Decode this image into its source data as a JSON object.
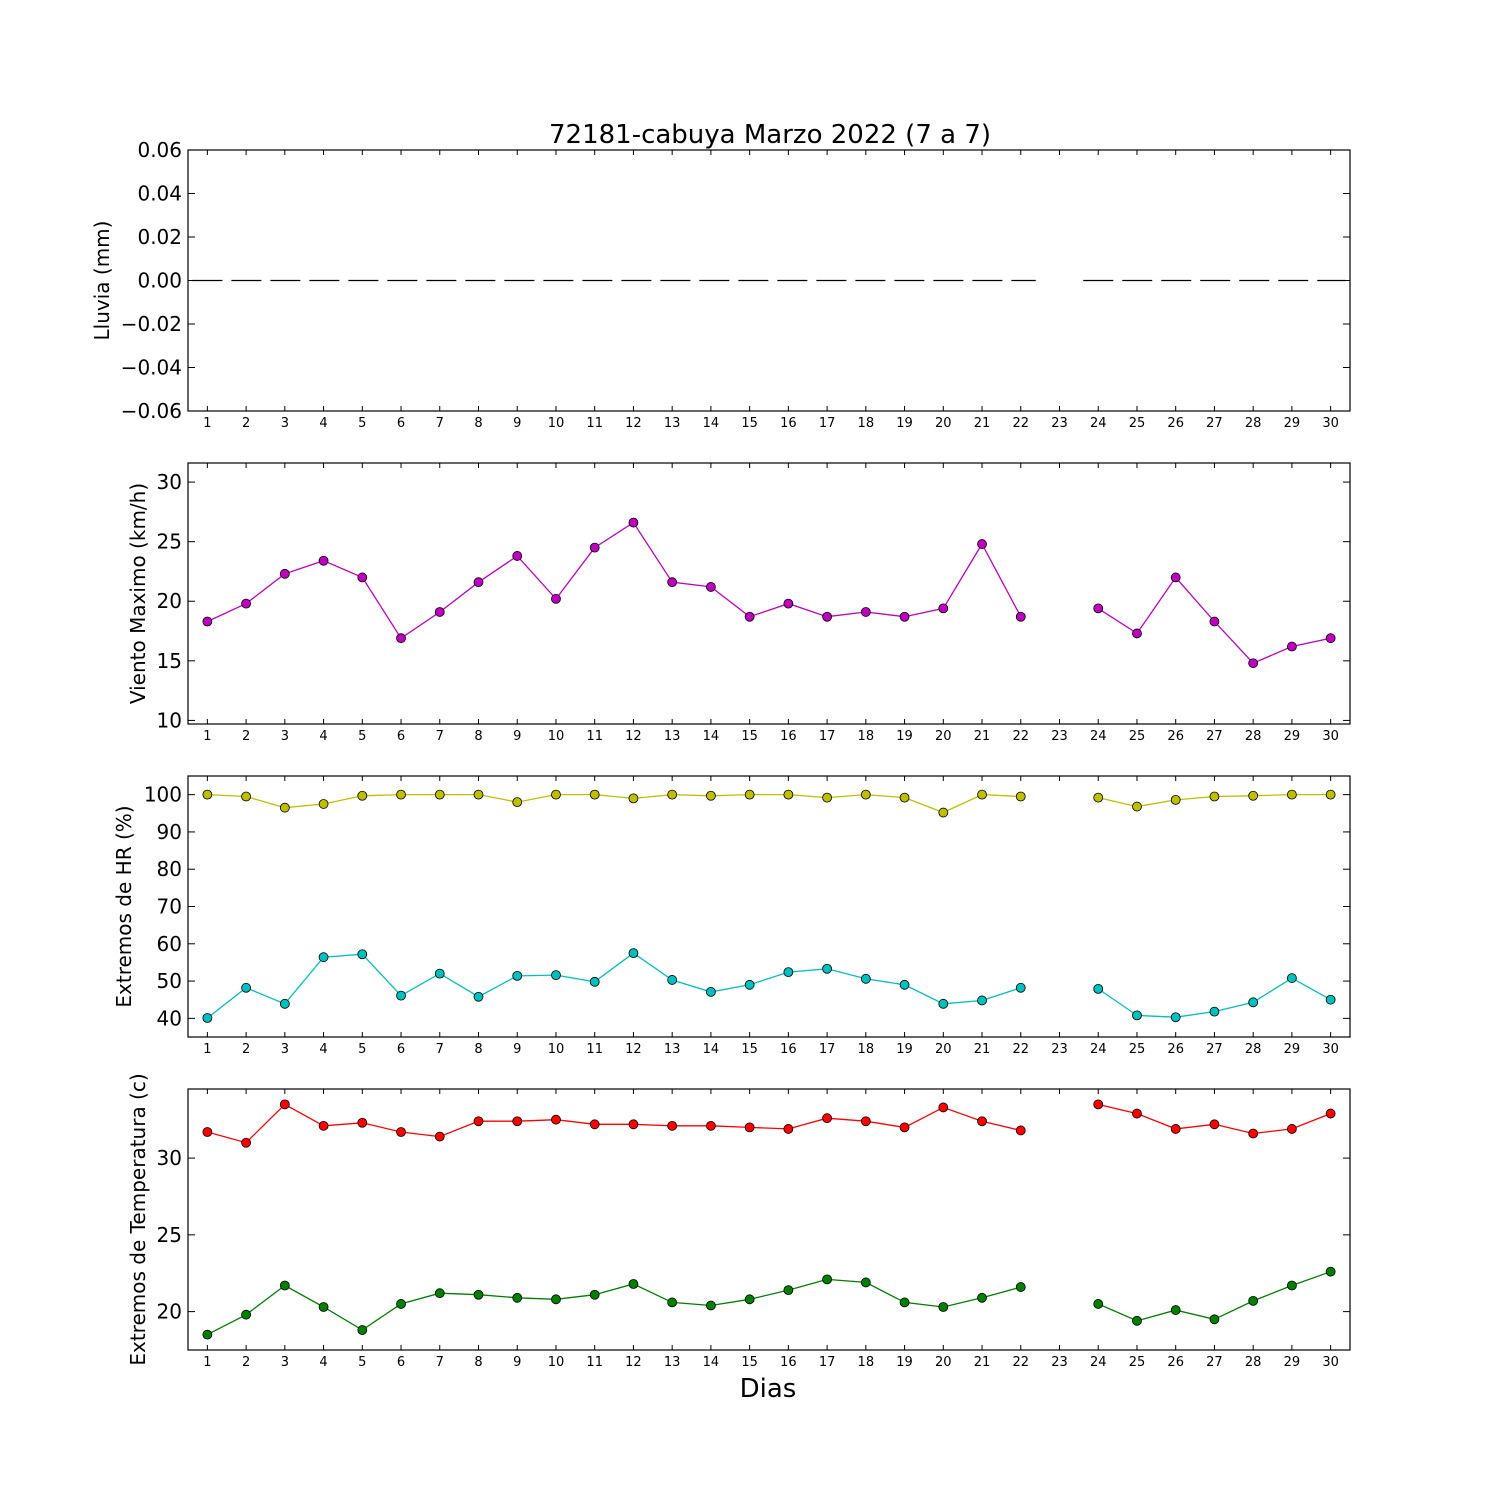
{
  "title": "72181-cabuya Marzo 2022  (7 a 7)",
  "xlabel": "Dias",
  "chart_data": [
    {
      "type": "line",
      "ylabel": "Lluvia (mm)",
      "ylim": [
        -0.06,
        0.06
      ],
      "yticks": [
        0.06,
        0.04,
        0.02,
        0.0,
        -0.02,
        -0.04,
        -0.06
      ],
      "ytick_labels": [
        "0.06",
        "0.04",
        "0.02",
        "0.00",
        "−0.02",
        "−0.04",
        "−0.06"
      ],
      "x": [
        1,
        2,
        3,
        4,
        5,
        6,
        7,
        8,
        9,
        10,
        11,
        12,
        13,
        14,
        15,
        16,
        17,
        18,
        19,
        20,
        21,
        22,
        23,
        24,
        25,
        26,
        27,
        28,
        29,
        30
      ],
      "series": [
        {
          "values": [
            0,
            0,
            0,
            0,
            0,
            0,
            0,
            0,
            0,
            0,
            0,
            0,
            0,
            0,
            0,
            0,
            0,
            0,
            0,
            0,
            0,
            0,
            null,
            0,
            0,
            0,
            0,
            0,
            0,
            0
          ],
          "color": "#000000",
          "style": "dashed",
          "marker": "none"
        }
      ]
    },
    {
      "type": "line",
      "ylabel": "Viento Maximo (km/h)",
      "ylim": [
        9.7,
        31.6
      ],
      "yticks": [
        30,
        25,
        20,
        15,
        10
      ],
      "ytick_labels": [
        "30",
        "25",
        "20",
        "15",
        "10"
      ],
      "x": [
        1,
        2,
        3,
        4,
        5,
        6,
        7,
        8,
        9,
        10,
        11,
        12,
        13,
        14,
        15,
        16,
        17,
        18,
        19,
        20,
        21,
        22,
        23,
        24,
        25,
        26,
        27,
        28,
        29,
        30
      ],
      "series": [
        {
          "values": [
            18.3,
            19.8,
            22.3,
            23.4,
            22.0,
            16.9,
            19.1,
            21.6,
            23.8,
            20.2,
            24.5,
            26.6,
            21.6,
            21.2,
            18.7,
            19.8,
            18.7,
            19.1,
            18.7,
            19.4,
            24.8,
            18.7,
            null,
            19.4,
            17.3,
            22.0,
            18.3,
            14.8,
            16.2,
            16.9
          ],
          "color": "#bf00bf",
          "marker": "circle"
        }
      ]
    },
    {
      "type": "line",
      "ylabel": "Extremos de HR (%)",
      "ylim": [
        35,
        105
      ],
      "yticks": [
        100,
        90,
        80,
        70,
        60,
        50,
        40
      ],
      "ytick_labels": [
        "100",
        "90",
        "80",
        "70",
        "60",
        "50",
        "40"
      ],
      "x": [
        1,
        2,
        3,
        4,
        5,
        6,
        7,
        8,
        9,
        10,
        11,
        12,
        13,
        14,
        15,
        16,
        17,
        18,
        19,
        20,
        21,
        22,
        23,
        24,
        25,
        26,
        27,
        28,
        29,
        30
      ],
      "series": [
        {
          "values": [
            100,
            99.5,
            96.5,
            97.5,
            99.7,
            100,
            100,
            100,
            98,
            100,
            100,
            99,
            100,
            99.7,
            100,
            100,
            99.2,
            100,
            99.2,
            95.2,
            100,
            99.5,
            null,
            99.2,
            96.8,
            98.6,
            99.5,
            99.7,
            100,
            100
          ],
          "color": "#bfbf00",
          "marker": "circle"
        },
        {
          "values": [
            40.1,
            48.2,
            43.9,
            56.4,
            57.2,
            46.1,
            52.0,
            45.8,
            51.4,
            51.6,
            49.8,
            57.5,
            50.3,
            47.1,
            49.0,
            52.4,
            53.3,
            50.6,
            49.0,
            43.9,
            44.8,
            48.2,
            null,
            47.9,
            40.8,
            40.3,
            41.8,
            44.3,
            50.8,
            45.0
          ],
          "color": "#00bfbf",
          "marker": "circle"
        }
      ]
    },
    {
      "type": "line",
      "ylabel": "Extremos de Temperatura (c)",
      "ylim": [
        17.5,
        34.5
      ],
      "yticks": [
        30,
        25,
        20
      ],
      "ytick_labels": [
        "30",
        "25",
        "20"
      ],
      "x": [
        1,
        2,
        3,
        4,
        5,
        6,
        7,
        8,
        9,
        10,
        11,
        12,
        13,
        14,
        15,
        16,
        17,
        18,
        19,
        20,
        21,
        22,
        23,
        24,
        25,
        26,
        27,
        28,
        29,
        30
      ],
      "series": [
        {
          "values": [
            31.7,
            31.0,
            33.5,
            32.1,
            32.3,
            31.7,
            31.4,
            32.4,
            32.4,
            32.5,
            32.2,
            32.2,
            32.1,
            32.1,
            32.0,
            31.9,
            32.6,
            32.4,
            32.0,
            33.3,
            32.4,
            31.8,
            null,
            33.5,
            32.9,
            31.9,
            32.2,
            31.6,
            31.9,
            32.9
          ],
          "color": "#ff0000",
          "marker": "circle"
        },
        {
          "values": [
            18.5,
            19.8,
            21.7,
            20.3,
            18.8,
            20.5,
            21.2,
            21.1,
            20.9,
            20.8,
            21.1,
            21.8,
            20.6,
            20.4,
            20.8,
            21.4,
            22.1,
            21.9,
            20.6,
            20.3,
            20.9,
            21.6,
            null,
            20.5,
            19.4,
            20.1,
            19.5,
            20.7,
            21.7,
            22.6
          ],
          "color": "#008000",
          "marker": "circle"
        }
      ]
    }
  ]
}
